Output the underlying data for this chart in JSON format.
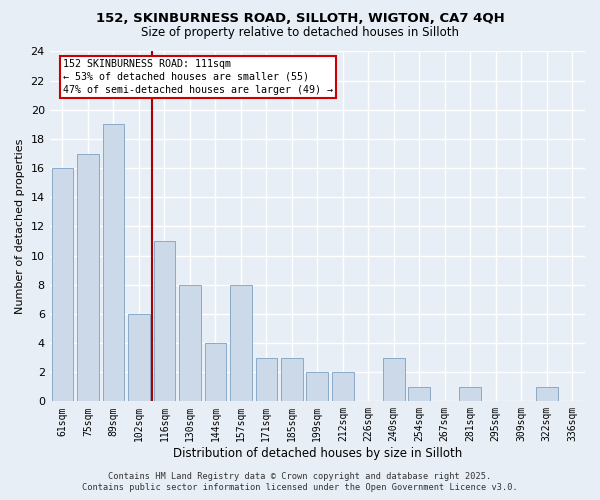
{
  "title": "152, SKINBURNESS ROAD, SILLOTH, WIGTON, CA7 4QH",
  "subtitle": "Size of property relative to detached houses in Silloth",
  "bar_labels": [
    "61sqm",
    "75sqm",
    "89sqm",
    "102sqm",
    "116sqm",
    "130sqm",
    "144sqm",
    "157sqm",
    "171sqm",
    "185sqm",
    "199sqm",
    "212sqm",
    "226sqm",
    "240sqm",
    "254sqm",
    "267sqm",
    "281sqm",
    "295sqm",
    "309sqm",
    "322sqm",
    "336sqm"
  ],
  "bar_values": [
    16,
    17,
    19,
    6,
    11,
    8,
    4,
    8,
    3,
    3,
    2,
    2,
    0,
    3,
    1,
    0,
    1,
    0,
    0,
    1,
    0
  ],
  "bar_color": "#ccd9e8",
  "bar_edge_color": "#8aaac8",
  "background_color": "#e8eef5",
  "plot_bg_color": "#e8eef5",
  "grid_color": "#ffffff",
  "xlabel": "Distribution of detached houses by size in Silloth",
  "ylabel": "Number of detached properties",
  "ylim": [
    0,
    24
  ],
  "yticks": [
    0,
    2,
    4,
    6,
    8,
    10,
    12,
    14,
    16,
    18,
    20,
    22,
    24
  ],
  "vline_index": 3.5,
  "vline_color": "#aa0000",
  "annotation_title": "152 SKINBURNESS ROAD: 111sqm",
  "annotation_line1": "← 53% of detached houses are smaller (55)",
  "annotation_line2": "47% of semi-detached houses are larger (49) →",
  "annotation_box_facecolor": "#ffffff",
  "annotation_box_edgecolor": "#cc0000",
  "footer_line1": "Contains HM Land Registry data © Crown copyright and database right 2025.",
  "footer_line2": "Contains public sector information licensed under the Open Government Licence v3.0."
}
